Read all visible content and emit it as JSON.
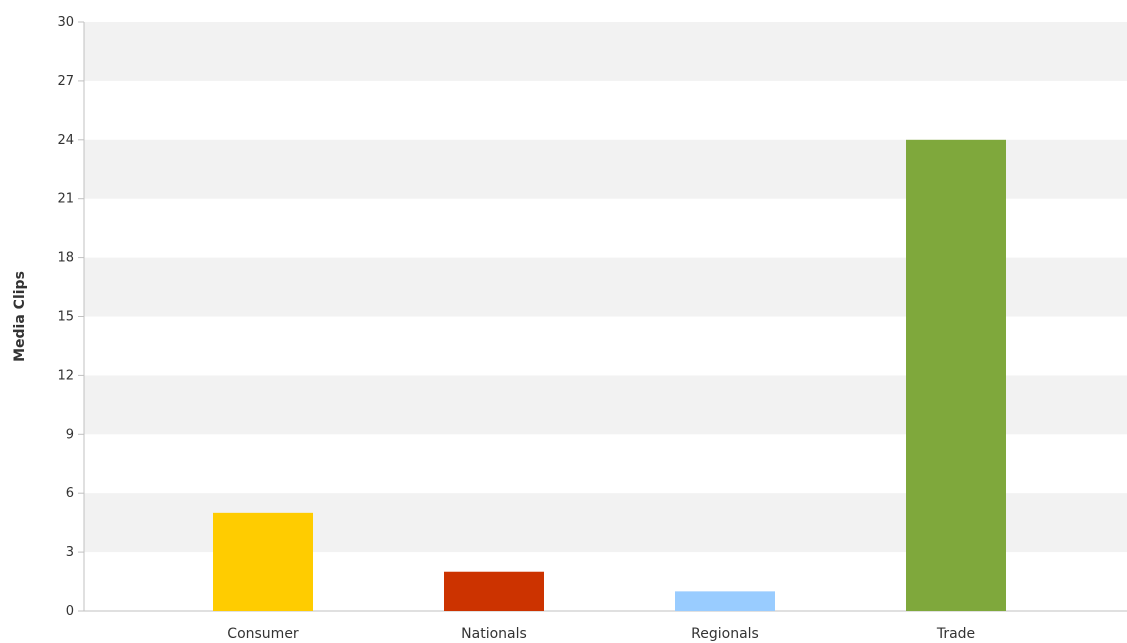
{
  "chart_data": {
    "type": "bar",
    "categories": [
      "Consumer",
      "Nationals",
      "Regionals",
      "Trade"
    ],
    "values": [
      5,
      2,
      1,
      24
    ],
    "bar_colors": [
      "#FFCC00",
      "#CC3300",
      "#99CCFF",
      "#7FA83C"
    ],
    "xlabel": "",
    "ylabel": "Media Clips",
    "ylim": [
      0,
      30
    ],
    "yticks": [
      0,
      3,
      6,
      9,
      12,
      15,
      18,
      21,
      24,
      27,
      30
    ],
    "grid": "alternating-bands",
    "band_color": "#F2F2F2",
    "legend": "none"
  }
}
